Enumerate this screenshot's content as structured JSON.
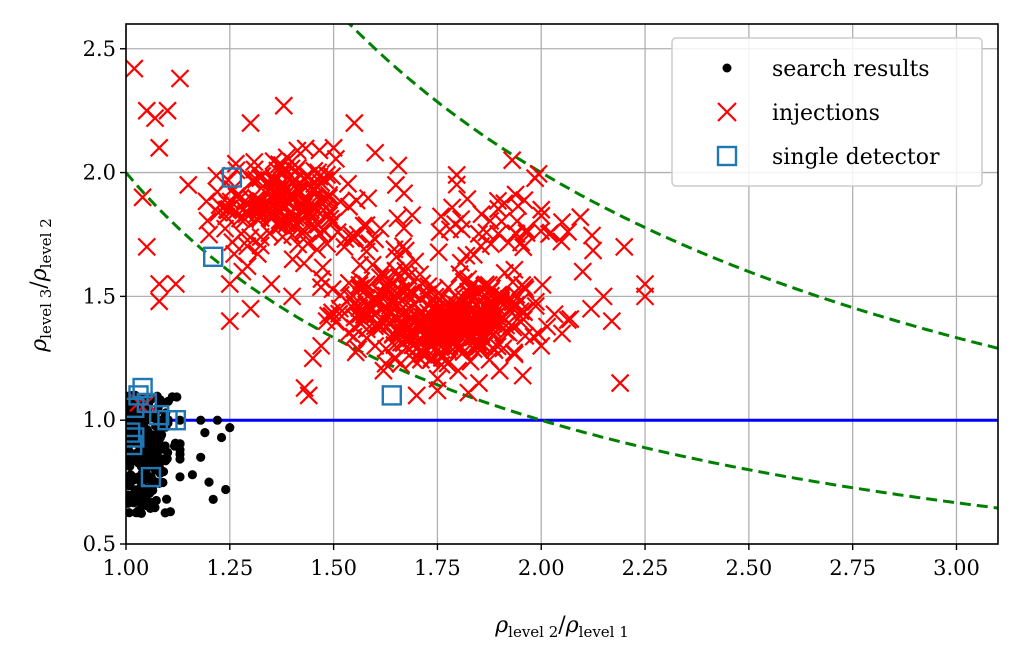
{
  "chart_data": {
    "type": "scatter",
    "xlabel": {
      "main_a": "ρ",
      "sub_a": "level 2",
      "slash": "/",
      "main_b": "ρ",
      "sub_b": "level 1"
    },
    "ylabel": {
      "main_a": "ρ",
      "sub_a": "level 3",
      "slash": "/",
      "main_b": "ρ",
      "sub_b": "level 2"
    },
    "xlim": [
      1.0,
      3.1
    ],
    "ylim": [
      0.5,
      2.6
    ],
    "xticks": [
      "1.00",
      "1.25",
      "1.50",
      "1.75",
      "2.00",
      "2.25",
      "2.50",
      "2.75",
      "3.00"
    ],
    "xtick_values": [
      1.0,
      1.25,
      1.5,
      1.75,
      2.0,
      2.25,
      2.5,
      2.75,
      3.0
    ],
    "yticks": [
      "0.5",
      "1.0",
      "1.5",
      "2.0",
      "2.5"
    ],
    "ytick_values": [
      0.5,
      1.0,
      1.5,
      2.0,
      2.5
    ],
    "grid": true,
    "legend_position": "top-right",
    "legend": {
      "search_results": "search results",
      "injections": "injections",
      "single_detector": "single detector"
    },
    "colors": {
      "search_results": "#000000",
      "injections": "#ff0000",
      "single_detector": "#1f77b4",
      "threshold_line": "#0000ff",
      "dashed_curves": "#008000",
      "grid": "#b0b0b0"
    },
    "reference_lines": [
      {
        "type": "horizontal",
        "y": 1.0,
        "style": "solid"
      },
      {
        "type": "curve",
        "equation": "y = 2/x",
        "style": "dashed"
      },
      {
        "type": "curve",
        "equation": "y = 4/x",
        "style": "dashed"
      }
    ],
    "series": {
      "search_results": {
        "name": "search results",
        "marker": "dot",
        "clusters": [
          {
            "x_range": [
              1.0,
              1.13
            ],
            "y_range": [
              0.62,
              1.1
            ],
            "count": 260
          }
        ],
        "outliers": [
          [
            1.13,
            1.0
          ],
          [
            1.18,
            1.0
          ],
          [
            1.22,
            1.0
          ],
          [
            1.25,
            0.97
          ],
          [
            1.2,
            0.75
          ],
          [
            1.24,
            0.72
          ],
          [
            1.21,
            0.68
          ],
          [
            1.16,
            0.78
          ],
          [
            1.18,
            0.85
          ],
          [
            1.23,
            0.93
          ],
          [
            1.19,
            0.95
          ]
        ]
      },
      "injections": {
        "name": "injections",
        "marker": "x",
        "clusters": [
          {
            "x_center": 1.37,
            "y_center": 1.88,
            "x_spread": 0.07,
            "y_spread": 0.09,
            "count": 180
          },
          {
            "x_center": 1.6,
            "y_center": 1.45,
            "x_spread": 0.05,
            "y_spread": 0.07,
            "count": 80
          },
          {
            "x_center": 1.75,
            "y_center": 1.36,
            "x_spread": 0.06,
            "y_spread": 0.07,
            "count": 140
          },
          {
            "x_center": 1.86,
            "y_center": 1.42,
            "x_spread": 0.07,
            "y_spread": 0.08,
            "count": 160
          },
          {
            "x_center": 1.9,
            "y_center": 1.75,
            "x_spread": 0.1,
            "y_spread": 0.1,
            "count": 50
          },
          {
            "x_center": 1.55,
            "y_center": 1.7,
            "x_spread": 0.12,
            "y_spread": 0.18,
            "count": 60
          }
        ],
        "scattered": [
          [
            1.02,
            2.42
          ],
          [
            1.13,
            2.38
          ],
          [
            1.05,
            2.25
          ],
          [
            1.07,
            2.22
          ],
          [
            1.1,
            2.25
          ],
          [
            1.38,
            2.27
          ],
          [
            1.3,
            2.2
          ],
          [
            1.08,
            2.1
          ],
          [
            1.04,
            1.9
          ],
          [
            1.05,
            1.7
          ],
          [
            1.08,
            1.55
          ],
          [
            1.12,
            1.55
          ],
          [
            1.08,
            1.48
          ],
          [
            1.03,
            1.07
          ],
          [
            1.05,
            1.07
          ],
          [
            1.15,
            1.95
          ],
          [
            1.2,
            1.75
          ],
          [
            1.25,
            1.55
          ],
          [
            1.25,
            1.4
          ],
          [
            1.28,
            1.6
          ],
          [
            1.3,
            1.45
          ],
          [
            1.35,
            1.55
          ],
          [
            1.4,
            1.5
          ],
          [
            1.44,
            1.1
          ],
          [
            1.45,
            1.25
          ],
          [
            1.47,
            1.3
          ],
          [
            1.43,
            1.13
          ],
          [
            1.5,
            2.1
          ],
          [
            1.55,
            2.2
          ],
          [
            1.6,
            2.08
          ],
          [
            1.65,
            1.95
          ],
          [
            2.0,
            1.85
          ],
          [
            2.05,
            1.8
          ],
          [
            2.1,
            1.6
          ],
          [
            2.12,
            1.45
          ],
          [
            2.15,
            1.5
          ],
          [
            2.17,
            1.4
          ],
          [
            2.2,
            1.7
          ],
          [
            2.25,
            1.55
          ],
          [
            2.25,
            1.5
          ],
          [
            2.19,
            1.15
          ],
          [
            1.93,
            2.05
          ],
          [
            1.8,
            1.2
          ],
          [
            1.7,
            1.1
          ],
          [
            1.75,
            1.12
          ],
          [
            1.85,
            1.15
          ],
          [
            1.6,
            1.3
          ],
          [
            1.65,
            1.25
          ],
          [
            1.62,
            1.2
          ],
          [
            1.9,
            1.2
          ],
          [
            2.0,
            1.3
          ],
          [
            2.05,
            1.35
          ]
        ]
      },
      "single_detector": {
        "name": "single detector",
        "marker": "square",
        "points": [
          [
            1.255,
            1.98
          ],
          [
            1.21,
            1.66
          ],
          [
            1.64,
            1.1
          ],
          [
            1.04,
            1.13
          ],
          [
            1.03,
            1.1
          ],
          [
            1.02,
            1.05
          ],
          [
            1.05,
            1.07
          ],
          [
            1.08,
            1.02
          ],
          [
            1.1,
            1.0
          ],
          [
            1.12,
            1.0
          ],
          [
            1.01,
            0.95
          ],
          [
            1.02,
            0.93
          ],
          [
            1.015,
            0.9
          ],
          [
            1.06,
            0.77
          ]
        ]
      }
    }
  }
}
